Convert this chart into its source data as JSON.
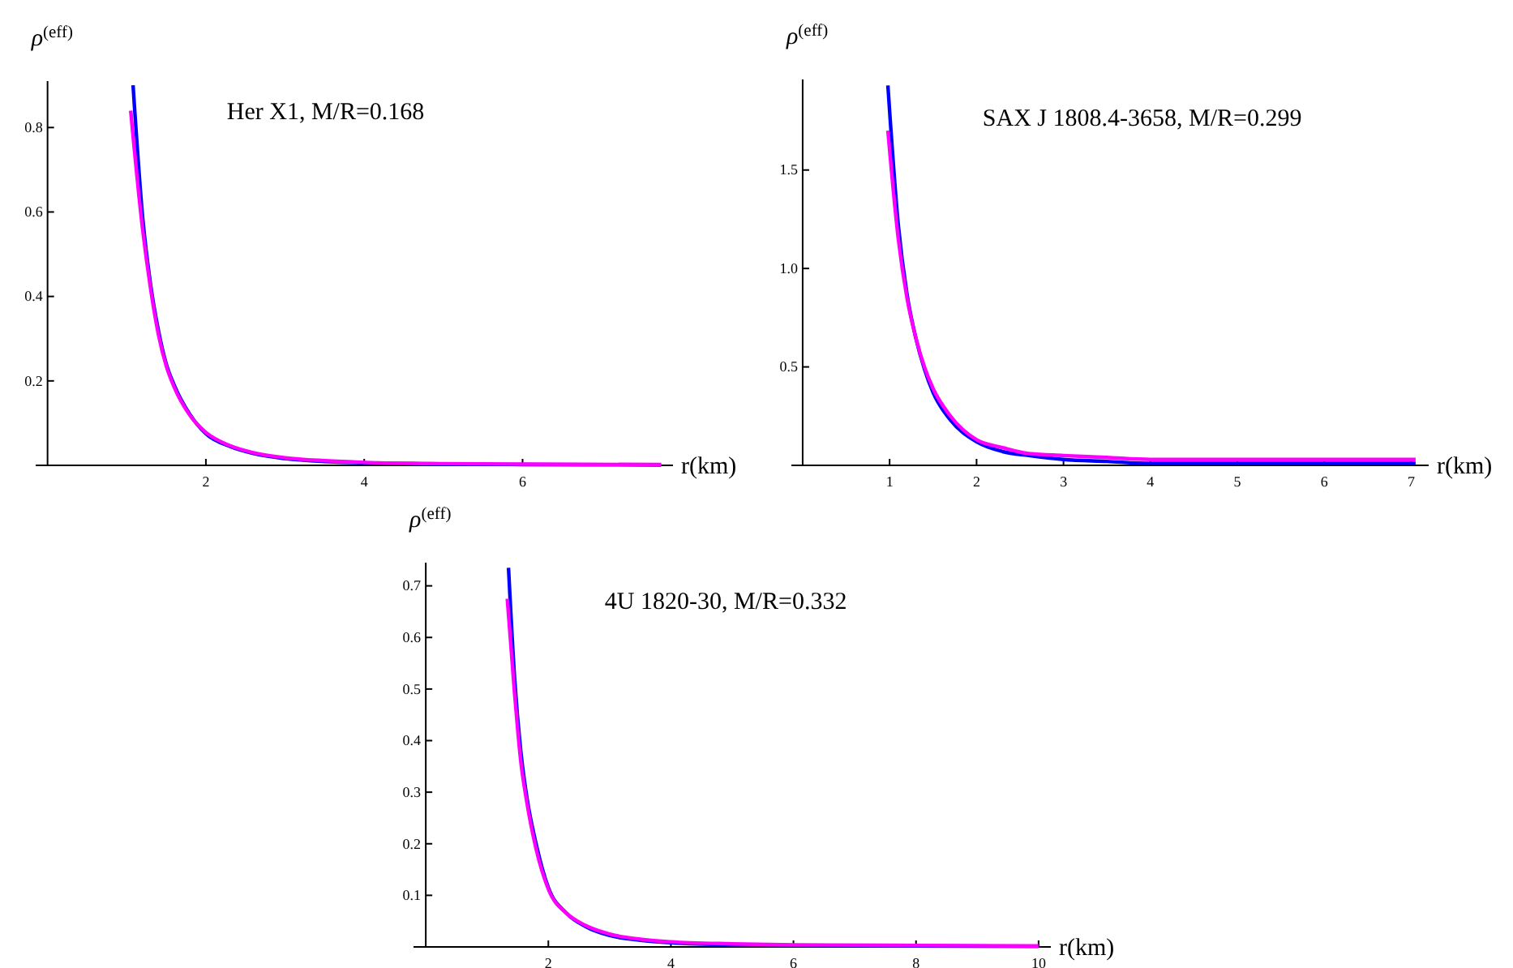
{
  "chart_data": [
    {
      "type": "line",
      "ylabel": "ρ$^{(eff)}$",
      "xlabel": "r(km)",
      "annotations": [
        "Her X1, M/R=0.168"
      ],
      "xlim": [
        -0.15,
        7.9
      ],
      "ylim": [
        0,
        0.91
      ],
      "xticks": [
        2,
        4,
        6
      ],
      "yticks": [
        0.2,
        0.4,
        0.6,
        0.8
      ],
      "series": [
        {
          "color": "#0000ff",
          "x": [
            1.08,
            1.2,
            1.3,
            1.4,
            1.5,
            1.6,
            1.8,
            2.0,
            2.3,
            2.6,
            3.0,
            3.5,
            4,
            5,
            6,
            7.75
          ],
          "values": [
            0.9,
            0.59,
            0.43,
            0.32,
            0.24,
            0.19,
            0.12,
            0.075,
            0.045,
            0.028,
            0.016,
            0.009,
            0.006,
            0.003,
            0.002,
            0.001
          ]
        },
        {
          "color": "#ff00ff",
          "x": [
            1.05,
            1.2,
            1.3,
            1.4,
            1.5,
            1.6,
            1.8,
            2.0,
            2.3,
            2.6,
            3.0,
            3.5,
            4,
            5,
            6,
            7.75
          ],
          "values": [
            0.84,
            0.56,
            0.42,
            0.31,
            0.235,
            0.185,
            0.118,
            0.078,
            0.047,
            0.03,
            0.018,
            0.011,
            0.007,
            0.004,
            0.003,
            0.002
          ]
        }
      ]
    },
    {
      "type": "line",
      "ylabel": "ρ$^{(eff)}$",
      "xlabel": "r(km)",
      "annotations": [
        "SAX J 1808.4-3658, M/R=0.299"
      ],
      "xlim": [
        -0.13,
        7.2
      ],
      "ylim": [
        0,
        1.96
      ],
      "xticks": [
        1,
        2,
        3,
        4,
        5,
        6,
        7
      ],
      "yticks": [
        0.5,
        {
          "value": 1,
          "label": "1.0"
        },
        1.5
      ],
      "series": [
        {
          "color": "#0000ff",
          "x": [
            0.98,
            1.1,
            1.2,
            1.3,
            1.4,
            1.5,
            1.7,
            2.0,
            2.3,
            2.6,
            3,
            3.5,
            4,
            5,
            6,
            7.05
          ],
          "values": [
            1.93,
            1.22,
            0.87,
            0.65,
            0.49,
            0.37,
            0.23,
            0.12,
            0.07,
            0.05,
            0.03,
            0.02,
            0.01,
            0.01,
            0.01,
            0.01
          ]
        },
        {
          "color": "#ff00ff",
          "x": [
            0.98,
            1.1,
            1.2,
            1.3,
            1.4,
            1.5,
            1.7,
            2.0,
            2.3,
            2.6,
            3,
            3.5,
            4,
            5,
            6,
            7.05
          ],
          "values": [
            1.7,
            1.15,
            0.85,
            0.65,
            0.5,
            0.39,
            0.25,
            0.13,
            0.09,
            0.06,
            0.05,
            0.04,
            0.03,
            0.03,
            0.03,
            0.03
          ]
        }
      ]
    },
    {
      "type": "line",
      "ylabel": "ρ$^{(eff)}$",
      "xlabel": "r(km)",
      "annotations": [
        "4U 1820-30, M/R=0.332"
      ],
      "xlim": [
        -0.2,
        10.2
      ],
      "ylim": [
        0,
        0.745
      ],
      "xticks": [
        2,
        4,
        6,
        8,
        10
      ],
      "yticks": [
        0.1,
        0.2,
        0.3,
        0.4,
        0.5,
        0.6,
        0.7
      ],
      "series": [
        {
          "color": "#0000ff",
          "x": [
            1.35,
            1.45,
            1.55,
            1.65,
            1.8,
            2.0,
            2.3,
            2.6,
            3,
            3.5,
            4,
            5,
            6,
            8,
            10
          ],
          "values": [
            0.735,
            0.52,
            0.38,
            0.29,
            0.2,
            0.115,
            0.065,
            0.04,
            0.022,
            0.013,
            0.008,
            0.004,
            0.003,
            0.002,
            0.001
          ]
        },
        {
          "color": "#ff00ff",
          "x": [
            1.33,
            1.45,
            1.55,
            1.65,
            1.8,
            2.0,
            2.3,
            2.6,
            3,
            3.5,
            4,
            5,
            6,
            8,
            10
          ],
          "values": [
            0.675,
            0.49,
            0.36,
            0.28,
            0.19,
            0.112,
            0.065,
            0.042,
            0.025,
            0.015,
            0.01,
            0.006,
            0.004,
            0.003,
            0.002
          ]
        }
      ]
    }
  ]
}
